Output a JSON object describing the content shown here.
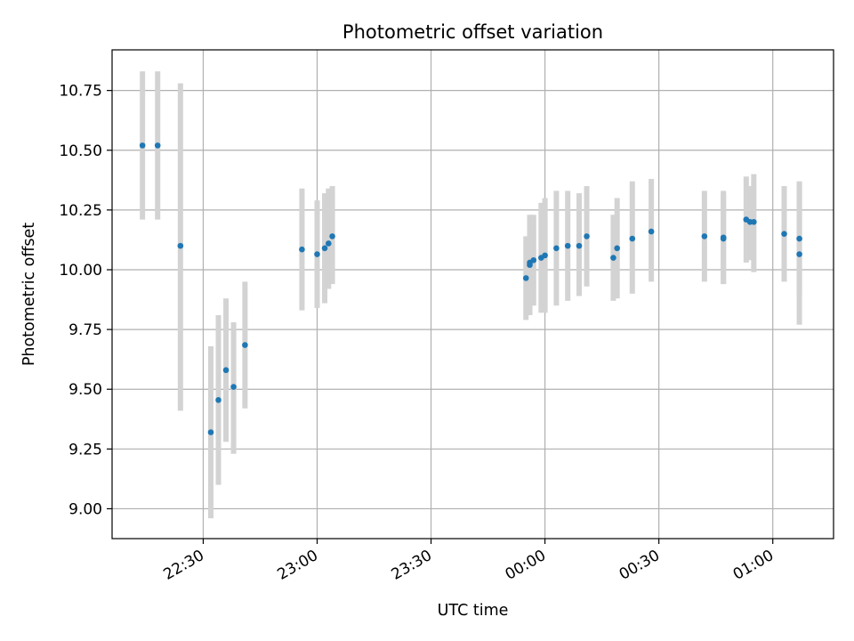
{
  "chart_data": {
    "type": "scatter",
    "title": "Photometric offset variation",
    "xlabel": "UTC time",
    "ylabel": "Photometric offset",
    "x_axis_kind": "time",
    "x_ticks": [
      "22:30",
      "23:00",
      "23:30",
      "00:00",
      "00:30",
      "01:00"
    ],
    "y_ticks": [
      "9.00",
      "9.25",
      "9.50",
      "9.75",
      "10.00",
      "10.25",
      "10.50",
      "10.75"
    ],
    "xlim": [
      "22:06",
      "01:16"
    ],
    "ylim": [
      8.875,
      10.92
    ],
    "grid": true,
    "colors": {
      "marker": "#1f77b4",
      "errorbar": "#d3d3d3",
      "grid": "#b0b0b0"
    },
    "points": [
      {
        "time": "22:14",
        "y": 10.52,
        "ylo": 10.21,
        "yhi": 10.83
      },
      {
        "time": "22:18",
        "y": 10.52,
        "ylo": 10.21,
        "yhi": 10.83
      },
      {
        "time": "22:24",
        "y": 10.1,
        "ylo": 9.41,
        "yhi": 10.78
      },
      {
        "time": "22:32",
        "y": 9.32,
        "ylo": 8.96,
        "yhi": 9.68
      },
      {
        "time": "22:34",
        "y": 9.455,
        "ylo": 9.1,
        "yhi": 9.81
      },
      {
        "time": "22:36",
        "y": 9.58,
        "ylo": 9.28,
        "yhi": 9.88
      },
      {
        "time": "22:38",
        "y": 9.51,
        "ylo": 9.23,
        "yhi": 9.78
      },
      {
        "time": "22:41",
        "y": 9.685,
        "ylo": 9.42,
        "yhi": 9.95
      },
      {
        "time": "22:56",
        "y": 10.085,
        "ylo": 9.83,
        "yhi": 10.34
      },
      {
        "time": "23:00",
        "y": 10.065,
        "ylo": 9.84,
        "yhi": 10.29
      },
      {
        "time": "23:02",
        "y": 10.09,
        "ylo": 9.86,
        "yhi": 10.32
      },
      {
        "time": "23:03",
        "y": 10.11,
        "ylo": 9.92,
        "yhi": 10.34
      },
      {
        "time": "23:04",
        "y": 10.14,
        "ylo": 9.94,
        "yhi": 10.35
      },
      {
        "time": "23:55",
        "y": 9.965,
        "ylo": 9.79,
        "yhi": 10.14
      },
      {
        "time": "23:56",
        "y": 10.02,
        "ylo": 9.81,
        "yhi": 10.23
      },
      {
        "time": "23:56",
        "y": 10.03,
        "ylo": 9.81,
        "yhi": 10.22
      },
      {
        "time": "23:57",
        "y": 10.04,
        "ylo": 9.85,
        "yhi": 10.23
      },
      {
        "time": "23:59",
        "y": 10.05,
        "ylo": 9.82,
        "yhi": 10.28
      },
      {
        "time": "00:00",
        "y": 10.06,
        "ylo": 9.82,
        "yhi": 10.3
      },
      {
        "time": "00:03",
        "y": 10.09,
        "ylo": 9.85,
        "yhi": 10.33
      },
      {
        "time": "00:06",
        "y": 10.1,
        "ylo": 9.87,
        "yhi": 10.33
      },
      {
        "time": "00:09",
        "y": 10.1,
        "ylo": 9.89,
        "yhi": 10.32
      },
      {
        "time": "00:11",
        "y": 10.14,
        "ylo": 9.93,
        "yhi": 10.35
      },
      {
        "time": "00:18",
        "y": 10.05,
        "ylo": 9.87,
        "yhi": 10.23
      },
      {
        "time": "00:19",
        "y": 10.09,
        "ylo": 9.88,
        "yhi": 10.3
      },
      {
        "time": "00:23",
        "y": 10.13,
        "ylo": 9.9,
        "yhi": 10.37
      },
      {
        "time": "00:28",
        "y": 10.16,
        "ylo": 9.95,
        "yhi": 10.38
      },
      {
        "time": "00:42",
        "y": 10.14,
        "ylo": 9.95,
        "yhi": 10.33
      },
      {
        "time": "00:47",
        "y": 10.135,
        "ylo": 9.94,
        "yhi": 10.33
      },
      {
        "time": "00:47",
        "y": 10.13,
        "ylo": 9.94,
        "yhi": 10.32
      },
      {
        "time": "00:53",
        "y": 10.21,
        "ylo": 10.03,
        "yhi": 10.39
      },
      {
        "time": "00:54",
        "y": 10.2,
        "ylo": 10.04,
        "yhi": 10.35
      },
      {
        "time": "00:55",
        "y": 10.2,
        "ylo": 9.99,
        "yhi": 10.4
      },
      {
        "time": "01:03",
        "y": 10.15,
        "ylo": 9.95,
        "yhi": 10.35
      },
      {
        "time": "01:07",
        "y": 10.13,
        "ylo": 9.89,
        "yhi": 10.37
      },
      {
        "time": "01:07",
        "y": 10.065,
        "ylo": 9.77,
        "yhi": 10.36
      }
    ]
  }
}
